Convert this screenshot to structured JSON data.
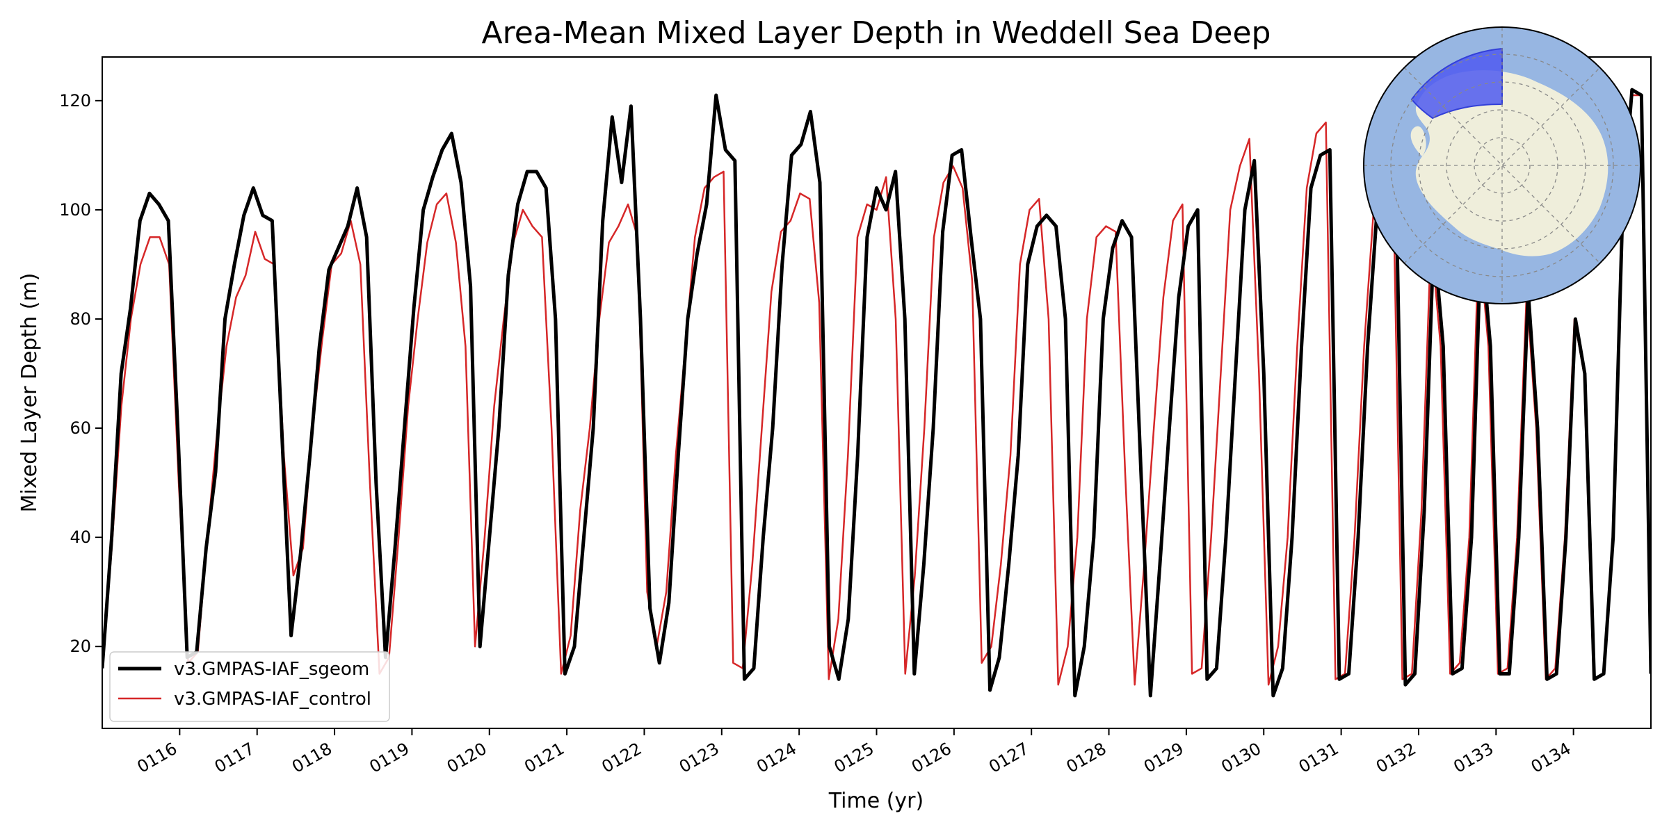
{
  "chart_data": {
    "type": "line",
    "title": "Area-Mean Mixed Layer Depth in Weddell Sea Deep",
    "xlabel": "Time (yr)",
    "ylabel": "Mixed Layer Depth (m)",
    "xlim": [
      115.0,
      135.0
    ],
    "ylim": [
      5,
      128
    ],
    "grid": false,
    "legend_position": "lower-left",
    "x_ticks": [
      {
        "value": 116,
        "label": "0116"
      },
      {
        "value": 117,
        "label": "0117"
      },
      {
        "value": 118,
        "label": "0118"
      },
      {
        "value": 119,
        "label": "0119"
      },
      {
        "value": 120,
        "label": "0120"
      },
      {
        "value": 121,
        "label": "0121"
      },
      {
        "value": 122,
        "label": "0122"
      },
      {
        "value": 123,
        "label": "0123"
      },
      {
        "value": 124,
        "label": "0124"
      },
      {
        "value": 125,
        "label": "0125"
      },
      {
        "value": 126,
        "label": "0126"
      },
      {
        "value": 127,
        "label": "0127"
      },
      {
        "value": 128,
        "label": "0128"
      },
      {
        "value": 129,
        "label": "0129"
      },
      {
        "value": 130,
        "label": "0130"
      },
      {
        "value": 131,
        "label": "0131"
      },
      {
        "value": 132,
        "label": "0132"
      },
      {
        "value": 133,
        "label": "0133"
      },
      {
        "value": 134,
        "label": "0134"
      }
    ],
    "y_ticks": [
      {
        "value": 20,
        "label": "20"
      },
      {
        "value": 40,
        "label": "40"
      },
      {
        "value": 60,
        "label": "60"
      },
      {
        "value": 80,
        "label": "80"
      },
      {
        "value": 100,
        "label": "100"
      },
      {
        "value": 120,
        "label": "120"
      }
    ],
    "series": [
      {
        "name": "v3.GMPAS-IAF_sgeom",
        "color": "#000000",
        "line_width": "thick",
        "values": [
          [
            16,
            40,
            70,
            82,
            98,
            103,
            101,
            98,
            60,
            18,
            19,
            38,
            52,
            80,
            90,
            99,
            104,
            99,
            98,
            60,
            22,
            37,
            55,
            75,
            89,
            93,
            97,
            104,
            95,
            50
          ],
          [
            18,
            38,
            60,
            82,
            100,
            106,
            111,
            114,
            105,
            86,
            20,
            40,
            60,
            88,
            101,
            107,
            107,
            104,
            80,
            15,
            20,
            40,
            60,
            98,
            117,
            105,
            119,
            80,
            27,
            17
          ],
          [
            28,
            55,
            80,
            92,
            101,
            121,
            111,
            109,
            14,
            16,
            40,
            60,
            90,
            110,
            112,
            118,
            105,
            20,
            14,
            25,
            55,
            95,
            104,
            100,
            107,
            80,
            15,
            35
          ],
          [
            60,
            96,
            110,
            111,
            95,
            80,
            12,
            18,
            35,
            55,
            90,
            97,
            99,
            97,
            80,
            11,
            20,
            40,
            80,
            93,
            98,
            95,
            52,
            11,
            35,
            60,
            84,
            97,
            100
          ],
          [
            14,
            16,
            40,
            70,
            100,
            109,
            70,
            11,
            16,
            40,
            75,
            104,
            110,
            111,
            14,
            15,
            40,
            75,
            100,
            106,
            105,
            13,
            15,
            45,
            95
          ],
          [
            75,
            15,
            16,
            40,
            95,
            75,
            15,
            15,
            40,
            85,
            60,
            14,
            15,
            40,
            80,
            70,
            14,
            15,
            40,
            100,
            122,
            121,
            15
          ]
        ]
      },
      {
        "name": "v3.GMPAS-IAF_control",
        "color": "#d62728",
        "line_width": "thin",
        "values": [
          [
            16,
            38,
            64,
            80,
            90,
            95,
            95,
            90,
            50,
            17,
            19,
            40,
            59,
            75,
            84,
            88,
            96,
            91,
            90,
            55,
            33,
            38,
            60,
            76,
            90,
            92,
            98,
            90,
            50,
            15
          ],
          [
            18,
            40,
            64,
            80,
            94,
            101,
            103,
            94,
            75,
            20,
            40,
            64,
            80,
            94,
            100,
            97,
            95,
            60,
            15,
            22,
            45,
            60,
            80,
            94,
            97,
            101,
            95,
            30,
            20
          ],
          [
            30,
            55,
            75,
            95,
            104,
            106,
            107,
            17,
            16,
            35,
            60,
            85,
            96,
            98,
            103,
            102,
            83,
            14,
            25,
            55,
            95,
            101,
            100,
            106,
            80,
            15,
            33
          ],
          [
            60,
            95,
            105,
            108,
            104,
            87,
            17,
            20,
            35,
            55,
            90,
            100,
            102,
            80,
            13,
            20,
            40,
            80,
            95,
            97,
            96,
            52,
            13,
            35,
            60,
            84,
            98,
            101
          ],
          [
            15,
            16,
            40,
            70,
            100,
            108,
            113,
            70,
            13,
            20,
            40,
            75,
            104,
            114,
            116,
            14,
            15,
            40,
            75,
            100,
            107,
            109,
            14,
            15,
            45,
            95
          ],
          [
            75,
            15,
            17,
            40,
            95,
            75,
            15,
            16,
            40,
            85,
            60,
            14,
            16,
            40,
            80,
            70,
            14,
            15,
            40,
            100,
            121,
            121,
            15
          ]
        ]
      }
    ]
  },
  "legend": {
    "items": [
      {
        "label": "v3.GMPAS-IAF_sgeom",
        "color": "#000000"
      },
      {
        "label": "v3.GMPAS-IAF_control",
        "color": "#d62728"
      }
    ]
  },
  "inset_map": {
    "ocean_color": "#97b6e2",
    "land_color": "#efeedb",
    "highlight_color": "#4f5bf0",
    "graticule": "dashed"
  }
}
